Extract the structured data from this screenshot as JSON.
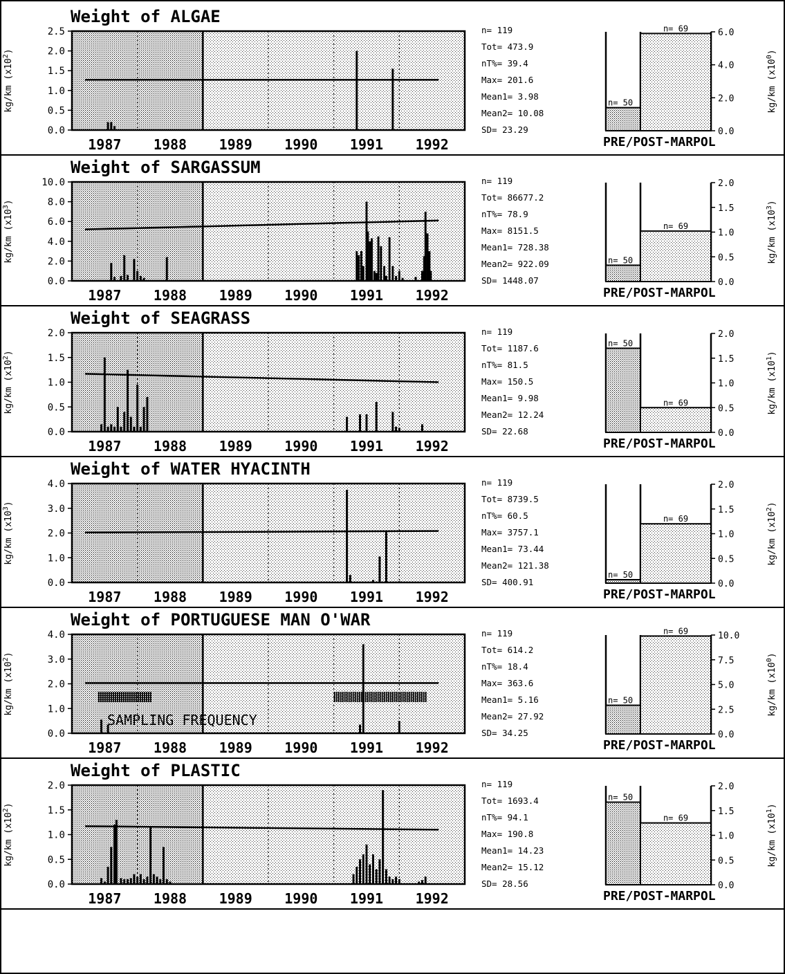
{
  "chart_data": [
    {
      "type": "bar",
      "title": "Weight of  ALGAE",
      "ylabel": "kg/km (x10^2)",
      "ylim": [
        0,
        2.5
      ],
      "yticks": [
        "0.0",
        "0.5",
        "1.0",
        "1.5",
        "2.0",
        "2.5"
      ],
      "xticks": [
        "1987",
        "1988",
        "1989",
        "1990",
        "1991",
        "1992"
      ],
      "pre_marpol_shaded_until": 1988.5,
      "trend": [
        1.27,
        1.27
      ],
      "bars": [
        [
          1987.05,
          0.2
        ],
        [
          1987.1,
          0.2
        ],
        [
          1987.15,
          0.1
        ],
        [
          1990.85,
          2.0
        ],
        [
          1991.4,
          1.55
        ]
      ],
      "stats": [
        "n=  119",
        "Tot=  473.9",
        "nT%=  39.4",
        "Max=  201.6",
        "Mean1=  3.98",
        "Mean2=  10.08",
        "SD=  23.29"
      ],
      "prepost": {
        "ylabel": "kg/km (x10^0)",
        "ylim": [
          0,
          6
        ],
        "yticks": [
          "0.0",
          "2.0",
          "4.0",
          "6.0"
        ],
        "pre": 1.4,
        "post": 5.9,
        "pre_label": "n= 50",
        "post_label": "n= 69",
        "caption": "PRE/POST-MARPOL"
      }
    },
    {
      "type": "bar",
      "title": "Weight of  SARGASSUM",
      "ylabel": "kg/km (x10^3)",
      "ylim": [
        0,
        10
      ],
      "yticks": [
        "0.0",
        "2.0",
        "4.0",
        "6.0",
        "8.0",
        "10.0"
      ],
      "xticks": [
        "1987",
        "1988",
        "1989",
        "1990",
        "1991",
        "1992"
      ],
      "pre_marpol_shaded_until": 1988.5,
      "trend": [
        5.2,
        6.1
      ],
      "bars": [
        [
          1987.1,
          1.8
        ],
        [
          1987.15,
          0.4
        ],
        [
          1987.25,
          0.5
        ],
        [
          1987.3,
          2.6
        ],
        [
          1987.35,
          0.6
        ],
        [
          1987.45,
          2.2
        ],
        [
          1987.5,
          1.0
        ],
        [
          1987.55,
          0.5
        ],
        [
          1987.6,
          0.3
        ],
        [
          1987.95,
          2.4
        ],
        [
          1990.85,
          3.0
        ],
        [
          1990.88,
          2.6
        ],
        [
          1990.92,
          3.0
        ],
        [
          1990.95,
          1.5
        ],
        [
          1991.0,
          8.0
        ],
        [
          1991.02,
          5.0
        ],
        [
          1991.05,
          4.0
        ],
        [
          1991.08,
          4.3
        ],
        [
          1991.12,
          1.0
        ],
        [
          1991.15,
          0.8
        ],
        [
          1991.18,
          4.5
        ],
        [
          1991.22,
          3.5
        ],
        [
          1991.27,
          1.5
        ],
        [
          1991.3,
          0.5
        ],
        [
          1991.35,
          4.4
        ],
        [
          1991.4,
          1.5
        ],
        [
          1991.45,
          0.5
        ],
        [
          1991.5,
          1.0
        ],
        [
          1991.55,
          0.3
        ],
        [
          1991.75,
          0.4
        ],
        [
          1991.85,
          1.0
        ],
        [
          1991.88,
          2.5
        ],
        [
          1991.9,
          7.0
        ],
        [
          1991.93,
          4.8
        ],
        [
          1991.96,
          3.0
        ],
        [
          1991.98,
          1.0
        ]
      ],
      "stats": [
        "n=  119",
        "Tot=  86677.2",
        "nT%=  78.9",
        "Max=  8151.5",
        "Mean1=  728.38",
        "Mean2=  922.09",
        "SD=  1448.07"
      ],
      "prepost": {
        "ylabel": "kg/km (x10^3)",
        "ylim": [
          0,
          2.0
        ],
        "yticks": [
          "0.0",
          "0.5",
          "1.0",
          "1.5",
          "2.0"
        ],
        "pre": 0.33,
        "post": 1.02,
        "pre_label": "n= 50",
        "post_label": "n= 69",
        "caption": "PRE/POST-MARPOL"
      }
    },
    {
      "type": "bar",
      "title": "Weight of  SEAGRASS",
      "ylabel": "kg/km (x10^2)",
      "ylim": [
        0,
        2.0
      ],
      "yticks": [
        "0.0",
        "0.5",
        "1.0",
        "1.5",
        "2.0"
      ],
      "xticks": [
        "1987",
        "1988",
        "1989",
        "1990",
        "1991",
        "1992"
      ],
      "pre_marpol_shaded_until": 1988.5,
      "trend": [
        1.17,
        1.0
      ],
      "bars": [
        [
          1986.95,
          0.15
        ],
        [
          1987.0,
          1.5
        ],
        [
          1987.05,
          0.1
        ],
        [
          1987.1,
          0.15
        ],
        [
          1987.15,
          0.1
        ],
        [
          1987.2,
          0.5
        ],
        [
          1987.25,
          0.1
        ],
        [
          1987.3,
          0.4
        ],
        [
          1987.35,
          1.25
        ],
        [
          1987.4,
          0.3
        ],
        [
          1987.45,
          0.1
        ],
        [
          1987.5,
          0.95
        ],
        [
          1987.55,
          0.1
        ],
        [
          1987.6,
          0.5
        ],
        [
          1987.65,
          0.7
        ],
        [
          1990.7,
          0.3
        ],
        [
          1990.9,
          0.35
        ],
        [
          1991.0,
          0.35
        ],
        [
          1991.15,
          0.6
        ],
        [
          1991.4,
          0.4
        ],
        [
          1991.45,
          0.1
        ],
        [
          1991.5,
          0.08
        ],
        [
          1991.85,
          0.15
        ]
      ],
      "stats": [
        "n=  119",
        "Tot=  1187.6",
        "nT%=  81.5",
        "Max=  150.5",
        "Mean1=  9.98",
        "Mean2=  12.24",
        "SD=  22.68"
      ],
      "prepost": {
        "ylabel": "kg/km (x10^1)",
        "ylim": [
          0,
          2.0
        ],
        "yticks": [
          "0.0",
          "0.5",
          "1.0",
          "1.5",
          "2.0"
        ],
        "pre": 1.7,
        "post": 0.5,
        "pre_label": "n= 50",
        "post_label": "n= 69",
        "caption": "PRE/POST-MARPOL"
      }
    },
    {
      "type": "bar",
      "title": "Weight of  WATER HYACINTH",
      "ylabel": "kg/km (x10^3)",
      "ylim": [
        0,
        4.0
      ],
      "yticks": [
        "0.0",
        "1.0",
        "2.0",
        "3.0",
        "4.0"
      ],
      "xticks": [
        "1987",
        "1988",
        "1989",
        "1990",
        "1991",
        "1992"
      ],
      "pre_marpol_shaded_until": 1988.5,
      "trend": [
        2.02,
        2.08
      ],
      "bars": [
        [
          1990.7,
          3.75
        ],
        [
          1990.75,
          0.3
        ],
        [
          1991.1,
          0.1
        ],
        [
          1991.2,
          1.05
        ],
        [
          1991.3,
          2.05
        ],
        [
          1991.5,
          0.05
        ]
      ],
      "stats": [
        "n=  119",
        "Tot=  8739.5",
        "nT%=  60.5",
        "Max=  3757.1",
        "Mean1=  73.44",
        "Mean2=  121.38",
        "SD=  400.91"
      ],
      "prepost": {
        "ylabel": "kg/km (x10^2)",
        "ylim": [
          0,
          2.0
        ],
        "yticks": [
          "0.0",
          "0.5",
          "1.0",
          "1.5",
          "2.0"
        ],
        "pre": 0.07,
        "post": 1.2,
        "pre_label": "n= 50",
        "post_label": "n= 69",
        "caption": "PRE/POST-MARPOL"
      }
    },
    {
      "type": "bar",
      "title": "Weight of  PORTUGUESE MAN O'WAR",
      "ylabel": "kg/km (x10^2)",
      "ylim": [
        0,
        4.0
      ],
      "yticks": [
        "0.0",
        "1.0",
        "2.0",
        "3.0",
        "4.0"
      ],
      "xticks": [
        "1987",
        "1988",
        "1989",
        "1990",
        "1991",
        "1992"
      ],
      "pre_marpol_shaded_until": 1988.5,
      "trend": [
        2.03,
        2.03
      ],
      "bars": [
        [
          1986.95,
          0.55
        ],
        [
          1987.05,
          0.35
        ],
        [
          1990.9,
          0.35
        ],
        [
          1990.95,
          3.6
        ],
        [
          1991.5,
          0.5
        ]
      ],
      "stats": [
        "n=  119",
        "Tot=  614.2",
        "nT%=  18.4",
        "Max=  363.6",
        "Mean1=  5.16",
        "Mean2=  27.92",
        "SD=  34.25"
      ],
      "prepost": {
        "ylabel": "kg/km (x10^0)",
        "ylim": [
          0,
          10.0
        ],
        "yticks": [
          "0.0",
          "2.5",
          "5.0",
          "7.5",
          "10.0"
        ],
        "pre": 2.9,
        "post": 9.9,
        "pre_label": "n= 50",
        "post_label": "n= 69",
        "caption": "PRE/POST-MARPOL"
      }
    },
    {
      "type": "bar",
      "title": "Weight of  PLASTIC",
      "ylabel": "kg/km (x10^2)",
      "ylim": [
        0,
        2.0
      ],
      "yticks": [
        "0.0",
        "0.5",
        "1.0",
        "1.5",
        "2.0"
      ],
      "xticks": [
        "1987",
        "1988",
        "1989",
        "1990",
        "1991",
        "1992"
      ],
      "pre_marpol_shaded_until": 1988.5,
      "trend": [
        1.17,
        1.1
      ],
      "bars": [
        [
          1986.95,
          0.12
        ],
        [
          1987.0,
          0.05
        ],
        [
          1987.05,
          0.35
        ],
        [
          1987.1,
          0.75
        ],
        [
          1987.15,
          1.2
        ],
        [
          1987.18,
          1.3
        ],
        [
          1987.25,
          0.12
        ],
        [
          1987.3,
          0.1
        ],
        [
          1987.35,
          0.1
        ],
        [
          1987.4,
          0.12
        ],
        [
          1987.45,
          0.2
        ],
        [
          1987.5,
          0.15
        ],
        [
          1987.55,
          0.2
        ],
        [
          1987.6,
          0.1
        ],
        [
          1987.65,
          0.15
        ],
        [
          1987.7,
          1.15
        ],
        [
          1987.75,
          0.2
        ],
        [
          1987.8,
          0.15
        ],
        [
          1987.85,
          0.1
        ],
        [
          1987.9,
          0.75
        ],
        [
          1987.95,
          0.1
        ],
        [
          1988.0,
          0.05
        ],
        [
          1990.8,
          0.2
        ],
        [
          1990.85,
          0.35
        ],
        [
          1990.9,
          0.5
        ],
        [
          1990.95,
          0.6
        ],
        [
          1991.0,
          0.8
        ],
        [
          1991.05,
          0.4
        ],
        [
          1991.1,
          0.6
        ],
        [
          1991.15,
          0.3
        ],
        [
          1991.2,
          0.5
        ],
        [
          1991.25,
          1.9
        ],
        [
          1991.3,
          0.3
        ],
        [
          1991.35,
          0.15
        ],
        [
          1991.4,
          0.1
        ],
        [
          1991.45,
          0.15
        ],
        [
          1991.5,
          0.1
        ],
        [
          1991.8,
          0.05
        ],
        [
          1991.85,
          0.08
        ],
        [
          1991.9,
          0.15
        ]
      ],
      "stats": [
        "n=  119",
        "Tot=  1693.4",
        "nT%=  94.1",
        "Max=  190.8",
        "Mean1=  14.23",
        "Mean2=  15.12",
        "SD=  28.56"
      ],
      "prepost": {
        "ylabel": "kg/km (x10^1)",
        "ylim": [
          0,
          2.0
        ],
        "yticks": [
          "0.0",
          "0.5",
          "1.0",
          "1.5",
          "2.0"
        ],
        "pre": 1.67,
        "post": 1.25,
        "pre_label": "n= 50",
        "post_label": "n= 69",
        "caption": "PRE/POST-MARPOL"
      }
    }
  ],
  "sampling": {
    "label": "SAMPLING FREQUENCY",
    "segments": [
      [
        1986.9,
        1987.7
      ],
      [
        1990.5,
        1991.9
      ]
    ]
  }
}
